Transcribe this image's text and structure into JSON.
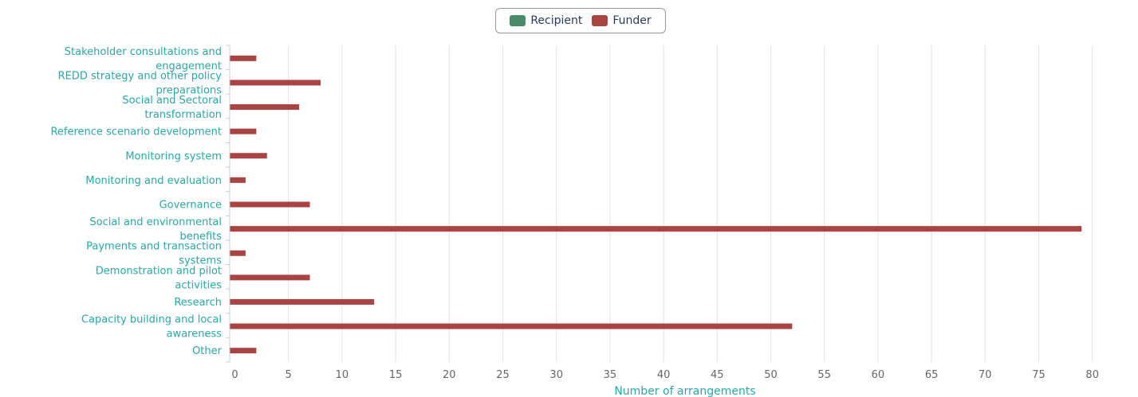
{
  "legend": {
    "items": [
      {
        "label": "Recipient",
        "color": "#4a8c6a"
      },
      {
        "label": "Funder",
        "color": "#a94442"
      }
    ]
  },
  "chart_data": {
    "type": "bar",
    "orientation": "horizontal",
    "categories": [
      "Stakeholder consultations and engagement",
      "REDD strategy and other policy preparations",
      "Social and Sectoral transformation",
      "Reference scenario development",
      "Monitoring system",
      "Monitoring and evaluation",
      "Governance",
      "Social and environmental benefits",
      "Payments and transaction systems",
      "Demonstration and pilot activities",
      "Research",
      "Capacity building and local awareness",
      "Other"
    ],
    "series": [
      {
        "name": "Recipient",
        "color": "#4a8c6a",
        "values": [
          0,
          0,
          0,
          0,
          0,
          0,
          0,
          0,
          0,
          0,
          0,
          0,
          0
        ]
      },
      {
        "name": "Funder",
        "color": "#a94442",
        "values": [
          2,
          8,
          6,
          2,
          3,
          1,
          7,
          79,
          1,
          7,
          13,
          52,
          2
        ]
      }
    ],
    "xlabel": "Number of arrangements",
    "xlim": [
      0,
      85
    ],
    "xticks": [
      0,
      5,
      10,
      15,
      20,
      25,
      30,
      35,
      40,
      45,
      50,
      55,
      60,
      65,
      70,
      75,
      80,
      85
    ],
    "grid": true,
    "legend_position": "top-center"
  }
}
